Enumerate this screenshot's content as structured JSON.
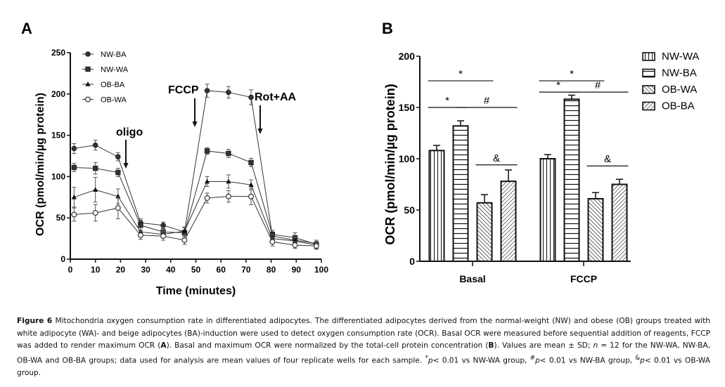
{
  "figure": {
    "panel_a_letter": "A",
    "panel_b_letter": "B"
  },
  "chart_data": [
    {
      "type": "line",
      "panel": "A",
      "title": "",
      "xlabel": "Time (minutes)",
      "ylabel": "OCR (pmol/min/µg protein)",
      "xlim": [
        0,
        100
      ],
      "ylim": [
        0,
        250
      ],
      "xticks": [
        0,
        10,
        20,
        30,
        40,
        50,
        60,
        70,
        80,
        90,
        100
      ],
      "yticks": [
        0,
        50,
        100,
        150,
        200,
        250
      ],
      "grid": false,
      "legend_position": "top-left",
      "x": [
        1.5,
        10,
        19,
        28,
        37,
        45.5,
        54.5,
        63,
        72,
        80.5,
        89.5,
        98
      ],
      "series": [
        {
          "name": "NW-BA",
          "marker": "filled-circle",
          "values": [
            134,
            138,
            124,
            44,
            41,
            33,
            204,
            202,
            196,
            28,
            23,
            19
          ],
          "errors": [
            6,
            6,
            5,
            5,
            4,
            5,
            8,
            7,
            9,
            5,
            5,
            4
          ]
        },
        {
          "name": "NW-WA",
          "marker": "filled-square",
          "values": [
            111,
            110,
            105,
            41,
            33,
            32,
            131,
            128,
            117,
            30,
            26,
            18
          ],
          "errors": [
            5,
            7,
            5,
            6,
            5,
            6,
            4,
            5,
            5,
            5,
            6,
            5
          ]
        },
        {
          "name": "OB-BA",
          "marker": "filled-triangle",
          "values": [
            75,
            84,
            76,
            33,
            30,
            34,
            94,
            94,
            90,
            25,
            22,
            17
          ],
          "errors": [
            12,
            15,
            9,
            5,
            4,
            5,
            6,
            8,
            6,
            4,
            5,
            4
          ]
        },
        {
          "name": "OB-WA",
          "marker": "open-circle",
          "values": [
            54,
            56,
            62,
            29,
            28,
            23,
            74,
            76,
            76,
            21,
            17,
            16
          ],
          "errors": [
            8,
            10,
            13,
            5,
            5,
            5,
            6,
            7,
            10,
            5,
            4,
            4
          ]
        }
      ],
      "annotations": [
        {
          "text": "oligo",
          "x": 22
        },
        {
          "text": "FCCP",
          "x": 49
        },
        {
          "text": "Rot+AA",
          "x": 76
        }
      ]
    },
    {
      "type": "bar",
      "panel": "B",
      "title": "",
      "xlabel": "",
      "ylabel": "OCR (pmol/min/µg protein)",
      "ylim": [
        0,
        200
      ],
      "yticks": [
        0,
        50,
        100,
        150,
        200
      ],
      "grid": false,
      "legend_position": "top-right",
      "categories": [
        "Basal",
        "FCCP"
      ],
      "series": [
        {
          "name": "NW-WA",
          "pattern": "vertical-lines",
          "values": [
            108,
            100
          ],
          "errors": [
            5,
            4
          ]
        },
        {
          "name": "NW-BA",
          "pattern": "horizontal-lines",
          "values": [
            132,
            158
          ],
          "errors": [
            5,
            4
          ]
        },
        {
          "name": "OB-WA",
          "pattern": "diagonal-back",
          "values": [
            57,
            61
          ],
          "errors": [
            8,
            6
          ]
        },
        {
          "name": "OB-BA",
          "pattern": "diagonal-forward",
          "values": [
            78,
            75
          ],
          "errors": [
            11,
            5
          ]
        }
      ],
      "significance": [
        {
          "category": "Basal",
          "from": "NW-WA",
          "to": "OB-WA",
          "symbol": "*",
          "level": 176
        },
        {
          "category": "Basal",
          "from": "NW-WA",
          "to": "NW-BA",
          "symbol": "*",
          "level": 150
        },
        {
          "category": "Basal",
          "from": "NW-BA",
          "to": "OB-BA",
          "symbol": "#",
          "level": 150
        },
        {
          "category": "Basal",
          "from": "OB-WA",
          "to": "OB-BA",
          "symbol": "&",
          "level": 94
        },
        {
          "category": "FCCP",
          "from": "NW-WA",
          "to": "OB-WA",
          "symbol": "*",
          "level": 176
        },
        {
          "category": "FCCP",
          "from": "NW-WA",
          "to": "NW-BA",
          "symbol": "*",
          "level": 165
        },
        {
          "category": "FCCP",
          "from": "NW-BA",
          "to": "OB-BA",
          "symbol": "#",
          "level": 165
        },
        {
          "category": "FCCP",
          "from": "OB-WA",
          "to": "OB-BA",
          "symbol": "&",
          "level": 93
        }
      ]
    }
  ],
  "caption": {
    "label": "Figure 6",
    "t1": " Mitochondria oxygen consumption rate in differentiated adipocytes. The differentiated adipocytes derived from the normal-weight (NW) and obese (OB) groups treated with white adipocyte (WA)- and beige adipocytes (BA)-induction were used to detect oxygen consumption rate (OCR). Basal OCR were measured before sequential addition of reagents, FCCP was added to render maximum OCR (",
    "refA": "A",
    "t2": "). Basal and maximum OCR were normalized by the total-cell protein concentration (",
    "refB": "B",
    "t3": "). Values are mean ± SD; ",
    "n": "n",
    "t4": " = 12 for the NW-WA, NW-BA, OB-WA and OB-BA groups; data used for analysis are mean values of four replicate wells for each sample. ",
    "sup1": "*",
    "p1": "p",
    "t5": "< 0.01 vs NW-WA group, ",
    "sup2": "#",
    "p2": "p",
    "t6": "< 0.01 vs NW-BA group, ",
    "sup3": "&",
    "p3": "p",
    "t7": "< 0.01 vs OB-WA group."
  }
}
